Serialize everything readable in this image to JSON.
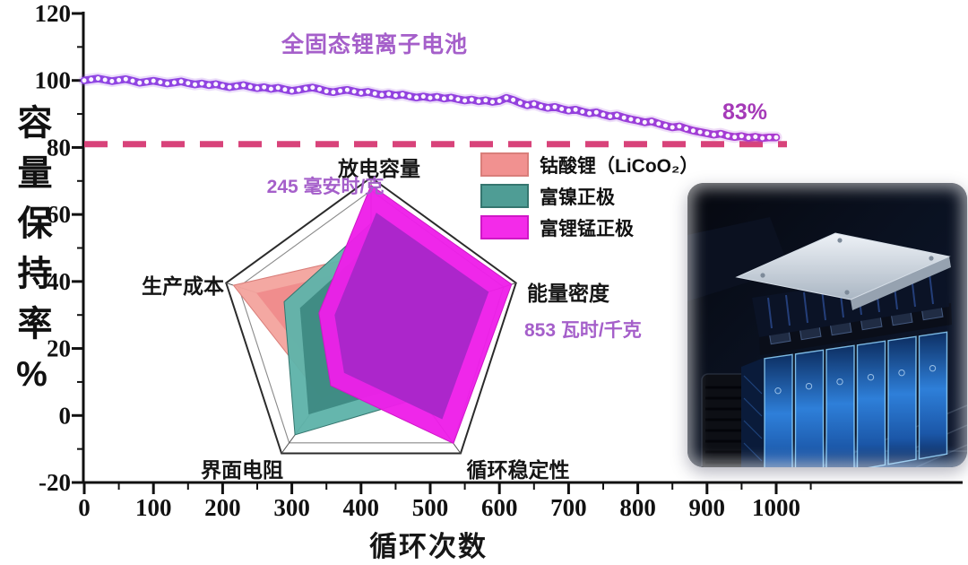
{
  "colors": {
    "curve_purple": "#8f45e3",
    "curve_purple_end": "#ab3bd0",
    "threshold_pink": "#d8437a",
    "annotation_purple": "#a55fca",
    "title_purple": "#a55bc8",
    "end_label_purple": "#a53ab8"
  },
  "chart_data": [
    {
      "type": "line",
      "title": "全固态锂离子电池",
      "xlabel": "循环次数",
      "ylabel": "容量保持率%",
      "xlim": [
        0,
        1000
      ],
      "ylim": [
        -20,
        120
      ],
      "x_ticks": [
        0,
        100,
        200,
        300,
        400,
        500,
        600,
        700,
        800,
        900,
        1000
      ],
      "y_ticks": [
        120,
        100,
        80,
        60,
        40,
        20,
        0,
        -20
      ],
      "grid": false,
      "series_name": "全固态锂离子电池",
      "line_color": "#8f45e3",
      "marker": "open-circle-white",
      "end_annotation": "83%",
      "threshold": {
        "y": 81,
        "color": "#d8437a",
        "style": "dashed"
      },
      "x": [
        0,
        10,
        20,
        30,
        40,
        50,
        60,
        70,
        80,
        90,
        100,
        110,
        120,
        130,
        140,
        150,
        160,
        170,
        180,
        190,
        200,
        210,
        220,
        230,
        240,
        250,
        260,
        270,
        280,
        290,
        300,
        310,
        320,
        330,
        340,
        350,
        360,
        370,
        380,
        390,
        400,
        410,
        420,
        430,
        440,
        450,
        460,
        470,
        480,
        490,
        500,
        510,
        520,
        530,
        540,
        550,
        560,
        570,
        580,
        590,
        600,
        610,
        620,
        630,
        640,
        650,
        660,
        670,
        680,
        690,
        700,
        710,
        720,
        730,
        740,
        750,
        760,
        770,
        780,
        790,
        800,
        810,
        820,
        830,
        840,
        850,
        860,
        870,
        880,
        890,
        900,
        910,
        920,
        930,
        940,
        950,
        960,
        970,
        980,
        990,
        1000
      ],
      "y": [
        100.0,
        100.3,
        100.6,
        100.2,
        99.8,
        100.1,
        100.4,
        99.9,
        99.3,
        99.6,
        99.9,
        99.5,
        99.1,
        99.4,
        99.7,
        99.2,
        98.8,
        99.1,
        98.6,
        98.9,
        98.4,
        98.0,
        98.3,
        98.6,
        98.1,
        97.7,
        98.0,
        97.5,
        97.8,
        97.3,
        96.9,
        97.2,
        97.6,
        97.9,
        97.4,
        96.8,
        96.5,
        96.9,
        97.2,
        96.7,
        96.3,
        96.6,
        96.1,
        95.7,
        96.0,
        95.5,
        95.8,
        95.3,
        94.9,
        95.2,
        94.8,
        95.1,
        94.6,
        94.9,
        94.4,
        94.0,
        94.3,
        93.8,
        94.1,
        93.6,
        93.9,
        94.8,
        94.2,
        93.3,
        92.6,
        93.0,
        92.3,
        91.8,
        92.1,
        91.5,
        91.0,
        91.3,
        90.7,
        90.2,
        90.5,
        89.8,
        89.3,
        89.6,
        88.9,
        88.4,
        88.0,
        87.5,
        87.8,
        87.1,
        86.5,
        86.0,
        86.3,
        85.6,
        85.0,
        84.6,
        84.2,
        83.8,
        84.1,
        83.5,
        83.1,
        83.4,
        82.9,
        83.2,
        82.8,
        83.0,
        83.0
      ]
    },
    {
      "type": "radar",
      "axes": [
        "放电容量",
        "能量密度",
        "循环稳定性",
        "界面电阻",
        "生产成本"
      ],
      "max": 1.0,
      "legend_position": "top-right",
      "annotations": [
        {
          "axis": "放电容量",
          "text": "245 毫安时/克"
        },
        {
          "axis": "能量密度",
          "text": "853 瓦时/千克"
        }
      ],
      "series": [
        {
          "name": "钴酸锂（LiCoO₂）",
          "values": [
            0.5,
            0.33,
            0.3,
            0.55,
            0.95
          ],
          "fill": "#ef8c8c",
          "edge": "#f4a49e",
          "legend_color": "#f19190",
          "legend_border": "#d97e7a"
        },
        {
          "name": "富镍正极",
          "values": [
            0.7,
            0.52,
            0.55,
            0.85,
            0.6
          ],
          "fill": "#3f8a83",
          "edge": "#5fb3aa",
          "legend_color": "#4f9d95",
          "legend_border": "#35766f"
        },
        {
          "name": "富锂锰正极",
          "values": [
            0.95,
            0.97,
            0.92,
            0.45,
            0.36
          ],
          "fill": "#a926c9",
          "edge": "#ee1ee9",
          "legend_color": "#f32be9",
          "legend_border": "#cf17c6"
        }
      ]
    }
  ]
}
